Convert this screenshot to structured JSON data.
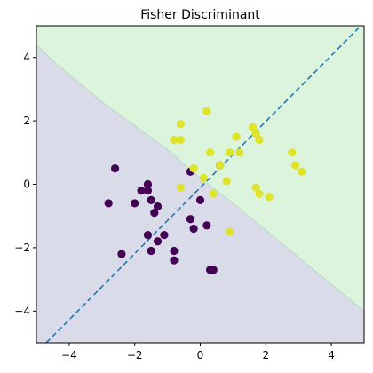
{
  "chart_data": {
    "type": "scatter",
    "title": "Fisher Discriminant",
    "xlabel": "",
    "ylabel": "",
    "xlim": [
      -5,
      5
    ],
    "ylim": [
      -5,
      5
    ],
    "x_ticks": [
      -4,
      -2,
      0,
      2,
      4
    ],
    "y_ticks": [
      -4,
      -2,
      0,
      2,
      4
    ],
    "x_tick_labels": [
      "−4",
      "−2",
      "0",
      "2",
      "4"
    ],
    "y_tick_labels": [
      "−4",
      "−2",
      "0",
      "2",
      "4"
    ],
    "grid": false,
    "legend": "none",
    "decision_regions": [
      {
        "class": 0,
        "color": "#d9dbe8"
      },
      {
        "class": 1,
        "color": "#dcf3dc"
      }
    ],
    "decision_boundary": {
      "points": [
        [
          -5,
          4.4
        ],
        [
          -4.5,
          3.9
        ],
        [
          -3,
          2.6
        ],
        [
          -1,
          1.1
        ],
        [
          0,
          0.2
        ],
        [
          1,
          -0.6
        ],
        [
          3,
          -2.3
        ],
        [
          5,
          -4.0
        ]
      ],
      "color": "#b8dcc4"
    },
    "discriminant_direction": {
      "points": [
        [
          -4.7,
          -5
        ],
        [
          4.9,
          5
        ]
      ],
      "style": "dashed",
      "color": "#1f77b4"
    },
    "series": [
      {
        "class": 0,
        "color": "#440154",
        "points": [
          [
            -2.6,
            0.5
          ],
          [
            -2.8,
            -0.6
          ],
          [
            -2.4,
            -2.2
          ],
          [
            -2.0,
            -0.6
          ],
          [
            -1.8,
            -0.2
          ],
          [
            -1.6,
            0.0
          ],
          [
            -1.6,
            -0.2
          ],
          [
            -1.5,
            -0.5
          ],
          [
            -1.4,
            -0.9
          ],
          [
            -1.3,
            -0.7
          ],
          [
            -1.6,
            -1.6
          ],
          [
            -1.3,
            -1.8
          ],
          [
            -1.5,
            -2.1
          ],
          [
            -1.1,
            -1.6
          ],
          [
            -0.8,
            -2.1
          ],
          [
            -0.8,
            -2.4
          ],
          [
            -0.3,
            -1.1
          ],
          [
            -0.2,
            -1.4
          ],
          [
            0.0,
            -0.5
          ],
          [
            0.2,
            -1.3
          ],
          [
            0.3,
            -2.7
          ],
          [
            0.4,
            -2.7
          ],
          [
            -0.3,
            0.4
          ],
          [
            0.6,
            0.6
          ]
        ]
      },
      {
        "class": 1,
        "color": "#dfe42b",
        "points": [
          [
            -0.8,
            1.4
          ],
          [
            -0.6,
            1.4
          ],
          [
            -0.6,
            1.9
          ],
          [
            0.2,
            2.3
          ],
          [
            -0.6,
            -0.1
          ],
          [
            -0.2,
            0.5
          ],
          [
            0.1,
            0.2
          ],
          [
            0.3,
            1.0
          ],
          [
            0.4,
            -0.3
          ],
          [
            0.6,
            0.6
          ],
          [
            0.8,
            0.1
          ],
          [
            0.9,
            1.0
          ],
          [
            1.1,
            1.5
          ],
          [
            1.2,
            1.0
          ],
          [
            0.9,
            -1.5
          ],
          [
            1.6,
            1.8
          ],
          [
            1.7,
            -0.1
          ],
          [
            1.8,
            1.4
          ],
          [
            1.7,
            1.6
          ],
          [
            1.8,
            -0.3
          ],
          [
            2.1,
            -0.4
          ],
          [
            2.8,
            1.0
          ],
          [
            2.9,
            0.6
          ],
          [
            3.1,
            0.4
          ]
        ]
      }
    ]
  }
}
